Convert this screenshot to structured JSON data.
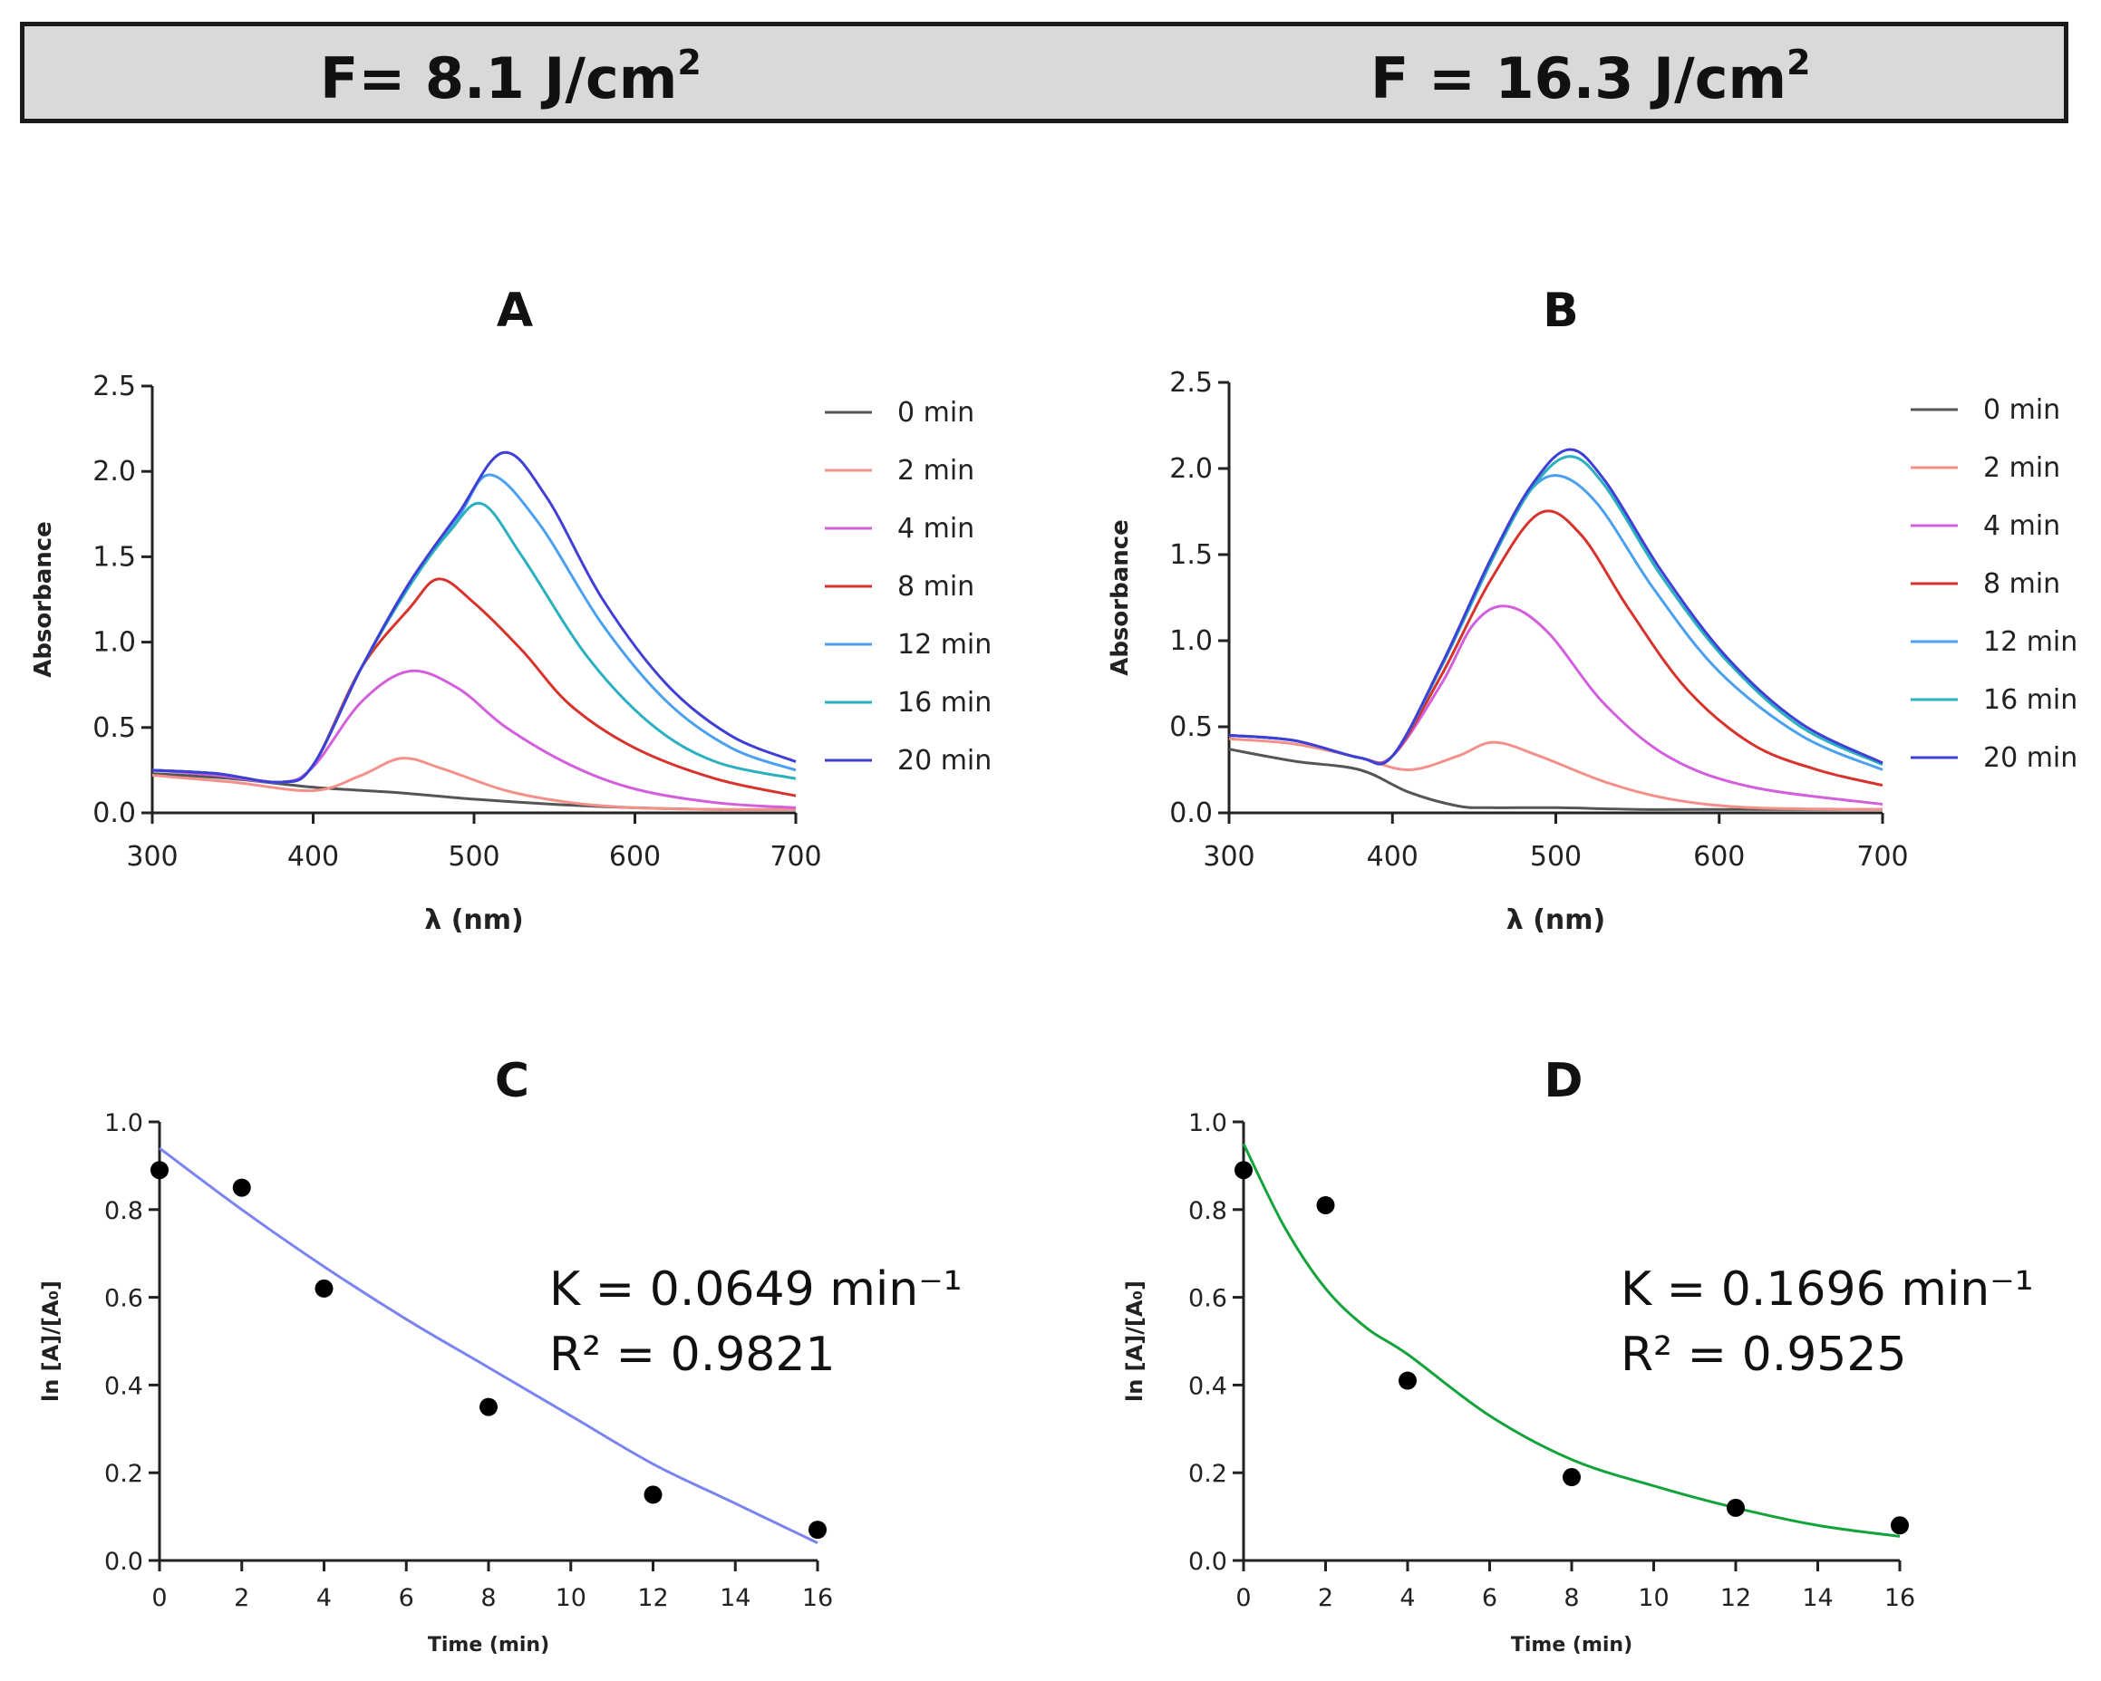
{
  "header": {
    "left": {
      "prefix": "F= 8.1 J/cm",
      "sup": "2"
    },
    "right": {
      "prefix": "F = 16.3  J/cm",
      "sup": "2"
    }
  },
  "colors": {
    "0 min": "#555555",
    "2 min": "#f4908a",
    "4 min": "#d35fdc",
    "8 min": "#d8322d",
    "12 min": "#4aa0ef",
    "16 min": "#2ab0bf",
    "20 min": "#3f3fd6",
    "fitC": "#7b83f0",
    "fitD": "#13a33b",
    "dots": "#000000"
  },
  "chart_data": [
    {
      "id": "A",
      "type": "line",
      "title": "A",
      "xlabel": "λ (nm)",
      "ylabel": "Absorbance",
      "xlim": [
        300,
        700
      ],
      "ylim": [
        0,
        2.5
      ],
      "xticks": [
        300,
        400,
        500,
        600,
        700
      ],
      "xtick_labels": [
        "300",
        "400",
        "500",
        "600",
        "700"
      ],
      "yticks": [
        0,
        0.5,
        1,
        1.5,
        2,
        2.5
      ],
      "ytick_labels": [
        "0.0",
        "0.5",
        "1.0",
        "1.5",
        "2.0",
        "2.5"
      ],
      "legend": "right",
      "series": [
        {
          "name": "0 min",
          "x": [
            300,
            350,
            400,
            450,
            500,
            550,
            600,
            650,
            700
          ],
          "y": [
            0.23,
            0.2,
            0.15,
            0.12,
            0.08,
            0.05,
            0.03,
            0.02,
            0.02
          ]
        },
        {
          "name": "2 min",
          "x": [
            300,
            350,
            400,
            430,
            455,
            480,
            520,
            560,
            600,
            650,
            700
          ],
          "y": [
            0.22,
            0.18,
            0.13,
            0.22,
            0.32,
            0.26,
            0.13,
            0.06,
            0.03,
            0.02,
            0.02
          ]
        },
        {
          "name": "4 min",
          "x": [
            300,
            340,
            380,
            400,
            430,
            460,
            490,
            520,
            560,
            600,
            650,
            700
          ],
          "y": [
            0.25,
            0.22,
            0.18,
            0.27,
            0.65,
            0.83,
            0.73,
            0.5,
            0.28,
            0.14,
            0.06,
            0.03
          ]
        },
        {
          "name": "8 min",
          "x": [
            300,
            340,
            380,
            400,
            430,
            460,
            478,
            500,
            530,
            560,
            600,
            650,
            700
          ],
          "y": [
            0.25,
            0.23,
            0.18,
            0.28,
            0.85,
            1.2,
            1.37,
            1.23,
            0.95,
            0.63,
            0.38,
            0.2,
            0.1
          ]
        },
        {
          "name": "12 min",
          "x": [
            300,
            340,
            380,
            400,
            430,
            460,
            490,
            510,
            540,
            580,
            620,
            660,
            700
          ],
          "y": [
            0.25,
            0.23,
            0.18,
            0.28,
            0.85,
            1.35,
            1.73,
            1.98,
            1.7,
            1.1,
            0.65,
            0.38,
            0.25
          ]
        },
        {
          "name": "16 min",
          "x": [
            300,
            340,
            380,
            400,
            430,
            460,
            485,
            505,
            530,
            570,
            610,
            650,
            700
          ],
          "y": [
            0.25,
            0.23,
            0.18,
            0.28,
            0.85,
            1.33,
            1.65,
            1.81,
            1.5,
            0.92,
            0.52,
            0.3,
            0.2
          ]
        },
        {
          "name": "20 min",
          "x": [
            300,
            340,
            380,
            400,
            430,
            460,
            490,
            518,
            545,
            580,
            620,
            660,
            700
          ],
          "y": [
            0.25,
            0.23,
            0.18,
            0.28,
            0.85,
            1.35,
            1.75,
            2.11,
            1.85,
            1.25,
            0.75,
            0.45,
            0.3
          ]
        }
      ]
    },
    {
      "id": "B",
      "type": "line",
      "title": "B",
      "xlabel": "λ (nm)",
      "ylabel": "Absorbance",
      "xlim": [
        300,
        700
      ],
      "ylim": [
        0,
        2.5
      ],
      "xticks": [
        300,
        400,
        500,
        600,
        700
      ],
      "xtick_labels": [
        "300",
        "400",
        "500",
        "600",
        "700"
      ],
      "yticks": [
        0,
        0.5,
        1,
        1.5,
        2,
        2.5
      ],
      "ytick_labels": [
        "0.0",
        "0.5",
        "1.0",
        "1.5",
        "2.0",
        "2.5"
      ],
      "legend": "right",
      "series": [
        {
          "name": "0 min",
          "x": [
            300,
            340,
            380,
            410,
            440,
            460,
            500,
            550,
            600,
            650,
            700
          ],
          "y": [
            0.37,
            0.3,
            0.25,
            0.12,
            0.04,
            0.03,
            0.03,
            0.02,
            0.02,
            0.02,
            0.02
          ]
        },
        {
          "name": "2 min",
          "x": [
            300,
            340,
            380,
            410,
            440,
            462,
            490,
            530,
            570,
            620,
            700
          ],
          "y": [
            0.43,
            0.4,
            0.32,
            0.25,
            0.33,
            0.41,
            0.33,
            0.18,
            0.08,
            0.03,
            0.02
          ]
        },
        {
          "name": "4 min",
          "x": [
            300,
            340,
            380,
            400,
            430,
            450,
            470,
            495,
            530,
            570,
            620,
            700
          ],
          "y": [
            0.45,
            0.42,
            0.32,
            0.33,
            0.75,
            1.1,
            1.2,
            1.05,
            0.63,
            0.32,
            0.15,
            0.05
          ]
        },
        {
          "name": "8 min",
          "x": [
            300,
            340,
            380,
            400,
            430,
            460,
            490,
            515,
            545,
            580,
            620,
            660,
            700
          ],
          "y": [
            0.45,
            0.42,
            0.32,
            0.33,
            0.8,
            1.35,
            1.74,
            1.62,
            1.18,
            0.72,
            0.4,
            0.25,
            0.16
          ]
        },
        {
          "name": "12 min",
          "x": [
            300,
            340,
            380,
            400,
            430,
            460,
            480,
            500,
            525,
            560,
            600,
            650,
            700
          ],
          "y": [
            0.45,
            0.42,
            0.32,
            0.33,
            0.85,
            1.45,
            1.82,
            1.96,
            1.8,
            1.3,
            0.82,
            0.45,
            0.25
          ]
        },
        {
          "name": "16 min",
          "x": [
            300,
            340,
            380,
            400,
            430,
            460,
            485,
            508,
            530,
            565,
            605,
            650,
            700
          ],
          "y": [
            0.45,
            0.42,
            0.32,
            0.33,
            0.85,
            1.45,
            1.88,
            2.07,
            1.9,
            1.37,
            0.88,
            0.5,
            0.28
          ]
        },
        {
          "name": "20 min",
          "x": [
            300,
            340,
            380,
            400,
            430,
            460,
            485,
            508,
            530,
            565,
            605,
            650,
            700
          ],
          "y": [
            0.45,
            0.42,
            0.32,
            0.33,
            0.86,
            1.47,
            1.9,
            2.11,
            1.93,
            1.4,
            0.9,
            0.52,
            0.29
          ]
        }
      ]
    },
    {
      "id": "C",
      "type": "scatter",
      "title": "C",
      "xlabel": "Time (min)",
      "ylabel": "ln [A]/[A₀]",
      "xlim": [
        0,
        16
      ],
      "ylim": [
        0,
        1.0
      ],
      "xticks": [
        0,
        2,
        4,
        6,
        8,
        10,
        12,
        14,
        16
      ],
      "xtick_labels": [
        "0",
        "2",
        "4",
        "6",
        "8",
        "10",
        "12",
        "14",
        "16"
      ],
      "yticks": [
        0,
        0.2,
        0.4,
        0.6,
        0.8,
        1.0
      ],
      "ytick_labels": [
        "0.0",
        "0.2",
        "0.4",
        "0.6",
        "0.8",
        "1.0"
      ],
      "points": {
        "x": [
          0,
          2,
          4,
          8,
          12,
          16
        ],
        "y": [
          0.89,
          0.85,
          0.62,
          0.35,
          0.15,
          0.07
        ]
      },
      "fit": {
        "x": [
          0,
          2,
          4,
          6,
          8,
          10,
          12,
          14,
          16
        ],
        "y": [
          0.94,
          0.8,
          0.67,
          0.55,
          0.44,
          0.33,
          0.22,
          0.13,
          0.04
        ]
      },
      "annotation": {
        "k_line": "K = 0.0649 min⁻¹",
        "r2_line": "R² = 0.9821"
      }
    },
    {
      "id": "D",
      "type": "scatter",
      "title": "D",
      "xlabel": "Time (min)",
      "ylabel": "ln [A]/[A₀]",
      "xlim": [
        0,
        16
      ],
      "ylim": [
        0,
        1.0
      ],
      "xticks": [
        0,
        2,
        4,
        6,
        8,
        10,
        12,
        14,
        16
      ],
      "xtick_labels": [
        "0",
        "2",
        "4",
        "6",
        "8",
        "10",
        "12",
        "14",
        "16"
      ],
      "yticks": [
        0,
        0.2,
        0.4,
        0.6,
        0.8,
        1.0
      ],
      "ytick_labels": [
        "0.0",
        "0.2",
        "0.4",
        "0.6",
        "0.8",
        "1.0"
      ],
      "points": {
        "x": [
          0,
          2,
          4,
          8,
          12,
          16
        ],
        "y": [
          0.89,
          0.81,
          0.41,
          0.19,
          0.12,
          0.08
        ]
      },
      "fit": {
        "x": [
          0,
          1,
          2,
          3,
          4,
          6,
          8,
          10,
          12,
          14,
          16
        ],
        "y": [
          0.95,
          0.76,
          0.62,
          0.53,
          0.47,
          0.33,
          0.23,
          0.17,
          0.12,
          0.08,
          0.055
        ]
      },
      "annotation": {
        "k_line": "K = 0.1696 min⁻¹",
        "r2_line": "R² = 0.9525"
      }
    }
  ]
}
